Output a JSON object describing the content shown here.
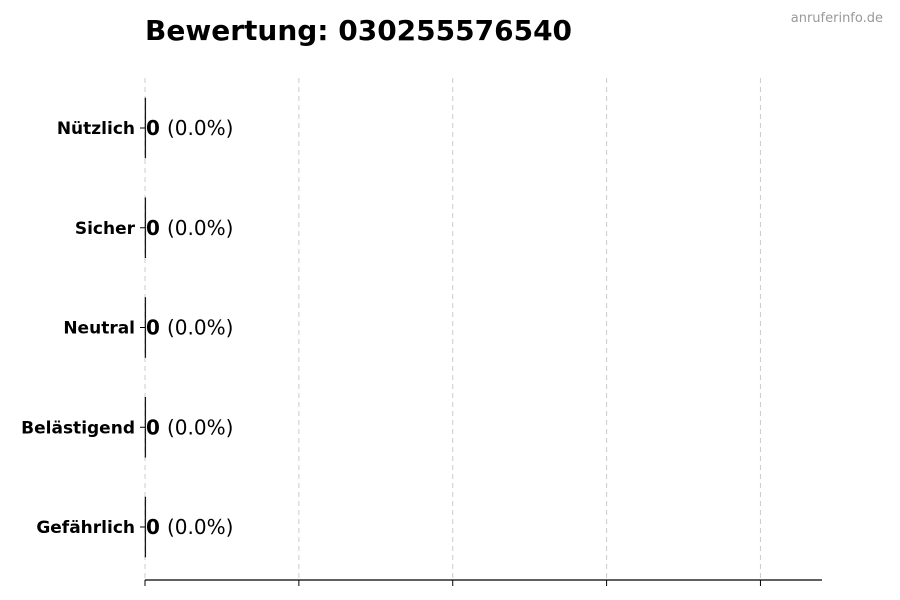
{
  "chart_data": {
    "type": "bar",
    "orientation": "horizontal",
    "title": "Bewertung: 030255576540",
    "watermark": "anruferinfo.de",
    "categories": [
      "Nützlich",
      "Sicher",
      "Neutral",
      "Belästigend",
      "Gefährlich"
    ],
    "values": [
      0,
      0,
      0,
      0,
      0
    ],
    "data_labels": [
      {
        "count": "0",
        "percent": "(0.0%)"
      },
      {
        "count": "0",
        "percent": "(0.0%)"
      },
      {
        "count": "0",
        "percent": "(0.0%)"
      },
      {
        "count": "0",
        "percent": "(0.0%)"
      },
      {
        "count": "0",
        "percent": "(0.0%)"
      }
    ],
    "xlabel": "",
    "ylabel": "",
    "xlim": [
      0,
      4.4
    ],
    "xticks": [
      0,
      1,
      2,
      3,
      4
    ],
    "xtick_labels_shown": false,
    "grid": "vertical dashed",
    "colors": {
      "text": "#000000",
      "grid": "#cccccc",
      "watermark": "#999999",
      "bar_edge": "#000000"
    }
  }
}
